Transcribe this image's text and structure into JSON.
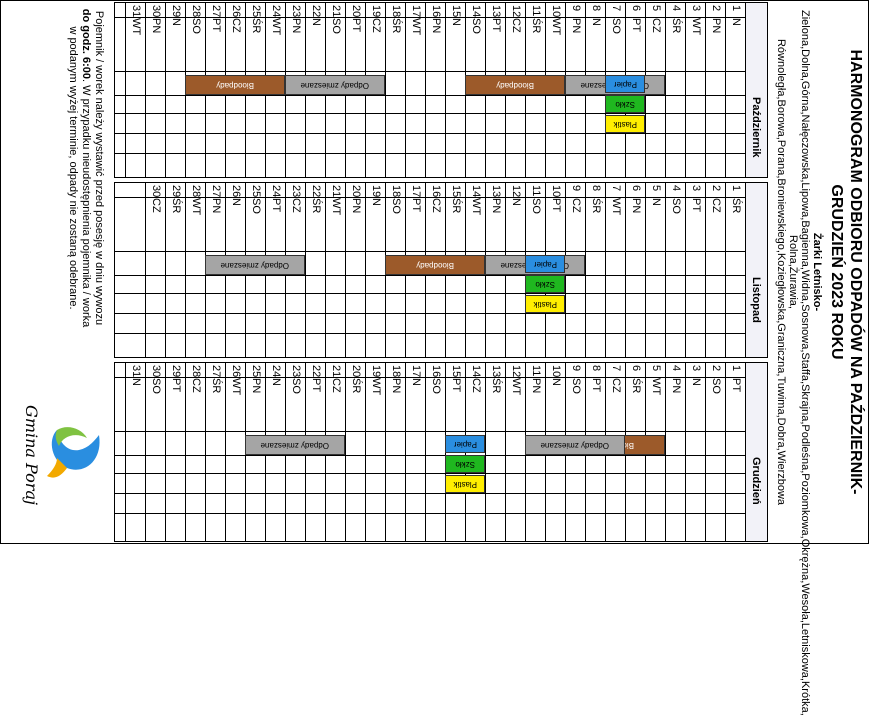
{
  "document": {
    "title_lines": [
      "HARMONOGRAM ODBIORU ODPADÓW NA PAŹDZIERNIK-",
      "GRUDZIEŃ 2023 ROKU"
    ],
    "area_name": "Żarki Letnisko-",
    "streets": "Zielona,Dolna,Górna,Nałęczowska,Lipowa,Bagienna,Widna,Sosnowa,Staffa,Skrajna,Podleśna,Poziomkowa,Okrężna,Wesoła,Letniskowa,Krótka, Rolna,Żurawia, Równoległa,Borowa,Porana,Broniewskiego,Koziegłowska,Graniczna,Tuwima,Dobra,Wierzbowa"
  },
  "months": [
    {
      "name": "Październik",
      "days": [
        [
          "1",
          "N"
        ],
        [
          "2",
          "PN"
        ],
        [
          "3",
          "WT"
        ],
        [
          "4",
          "ŚR"
        ],
        [
          "5",
          "CZ"
        ],
        [
          "6",
          "PT"
        ],
        [
          "7",
          "SO"
        ],
        [
          "8",
          "N"
        ],
        [
          "9",
          "PN"
        ],
        [
          "10",
          "WT"
        ],
        [
          "11",
          "ŚR"
        ],
        [
          "12",
          "CZ"
        ],
        [
          "13",
          "PT"
        ],
        [
          "14",
          "SO"
        ],
        [
          "15",
          "N"
        ],
        [
          "16",
          "PN"
        ],
        [
          "17",
          "WT"
        ],
        [
          "18",
          "ŚR"
        ],
        [
          "19",
          "CZ"
        ],
        [
          "20",
          "PT"
        ],
        [
          "21",
          "SO"
        ],
        [
          "22",
          "N"
        ],
        [
          "23",
          "PN"
        ],
        [
          "24",
          "WT"
        ],
        [
          "25",
          "ŚR"
        ],
        [
          "26",
          "CZ"
        ],
        [
          "27",
          "PT"
        ],
        [
          "28",
          "SO"
        ],
        [
          "29",
          "N"
        ],
        [
          "30",
          "PN"
        ],
        [
          "31",
          "WT"
        ]
      ]
    },
    {
      "name": "Listopad",
      "days": [
        [
          "1",
          "ŚR"
        ],
        [
          "2",
          "CZ"
        ],
        [
          "3",
          "PT"
        ],
        [
          "4",
          "SO"
        ],
        [
          "5",
          "N"
        ],
        [
          "6",
          "PN"
        ],
        [
          "7",
          "WT"
        ],
        [
          "8",
          "ŚR"
        ],
        [
          "9",
          "CZ"
        ],
        [
          "10",
          "PT"
        ],
        [
          "11",
          "SO"
        ],
        [
          "12",
          "N"
        ],
        [
          "13",
          "PN"
        ],
        [
          "14",
          "WT"
        ],
        [
          "15",
          "ŚR"
        ],
        [
          "16",
          "CZ"
        ],
        [
          "17",
          "PT"
        ],
        [
          "18",
          "SO"
        ],
        [
          "19",
          "N"
        ],
        [
          "20",
          "PN"
        ],
        [
          "21",
          "WT"
        ],
        [
          "22",
          "ŚR"
        ],
        [
          "23",
          "CZ"
        ],
        [
          "24",
          "PT"
        ],
        [
          "25",
          "SO"
        ],
        [
          "26",
          "N"
        ],
        [
          "27",
          "PN"
        ],
        [
          "28",
          "WT"
        ],
        [
          "29",
          "ŚR"
        ],
        [
          "30",
          "CZ"
        ]
      ]
    },
    {
      "name": "Grudzień",
      "days": [
        [
          "1",
          "PT"
        ],
        [
          "2",
          "SO"
        ],
        [
          "3",
          "N"
        ],
        [
          "4",
          "PN"
        ],
        [
          "5",
          "WT"
        ],
        [
          "6",
          "ŚR"
        ],
        [
          "7",
          "CZ"
        ],
        [
          "8",
          "PT"
        ],
        [
          "9",
          "SO"
        ],
        [
          "10",
          "N"
        ],
        [
          "11",
          "PN"
        ],
        [
          "12",
          "WT"
        ],
        [
          "13",
          "ŚR"
        ],
        [
          "14",
          "CZ"
        ],
        [
          "15",
          "PT"
        ],
        [
          "16",
          "SO"
        ],
        [
          "17",
          "N"
        ],
        [
          "18",
          "PN"
        ],
        [
          "19",
          "WT"
        ],
        [
          "20",
          "ŚR"
        ],
        [
          "21",
          "CZ"
        ],
        [
          "22",
          "PT"
        ],
        [
          "23",
          "SO"
        ],
        [
          "24",
          "N"
        ],
        [
          "25",
          "PN"
        ],
        [
          "26",
          "WT"
        ],
        [
          "27",
          "ŚR"
        ],
        [
          "28",
          "CZ"
        ],
        [
          "29",
          "PT"
        ],
        [
          "30",
          "SO"
        ],
        [
          "31",
          "N"
        ]
      ]
    }
  ],
  "waste_types": {
    "mixed": "Odpady zmieszane",
    "bio": "Bioodpady",
    "paper": "Papier",
    "glass": "Szkło",
    "plastic": "Plastik"
  },
  "colors": {
    "bio": "#9c5a2a",
    "mixed": "#a5a5a5",
    "paper": "#2a8ee0",
    "glass": "#1fb81f",
    "plastic": "#ffee00"
  },
  "schedule": [
    {
      "month": 0,
      "day": 5,
      "types": [
        "mixed"
      ]
    },
    {
      "month": 0,
      "day": 6,
      "types": [
        "paper",
        "glass",
        "plastic"
      ]
    },
    {
      "month": 0,
      "day": 10,
      "types": [
        "bio"
      ]
    },
    {
      "month": 0,
      "day": 19,
      "types": [
        "mixed"
      ]
    },
    {
      "month": 0,
      "day": 24,
      "types": [
        "bio"
      ]
    },
    {
      "month": 1,
      "day": 9,
      "types": [
        "mixed"
      ]
    },
    {
      "month": 1,
      "day": 10,
      "types": [
        "paper",
        "glass",
        "plastic"
      ]
    },
    {
      "month": 1,
      "day": 14,
      "types": [
        "bio"
      ]
    },
    {
      "month": 1,
      "day": 23,
      "types": [
        "mixed"
      ]
    },
    {
      "month": 2,
      "day": 5,
      "types": [
        "bio"
      ]
    },
    {
      "month": 2,
      "day": 7,
      "types": [
        "mixed"
      ]
    },
    {
      "month": 2,
      "day": 14,
      "types": [
        "paper",
        "glass",
        "plastic"
      ]
    },
    {
      "month": 2,
      "day": 21,
      "types": [
        "mixed"
      ]
    }
  ],
  "footer": {
    "note_1": "Pojemnik / worek należy wystawić przed posesję w dniu wywozu ",
    "note_bold": "do godz. 6:00",
    "note_2": ". W przypadku nieudostępnienia pojemnika / worka w podanym wyżej terminie, odpady nie zostaną odebrane.",
    "logo_text": "Gmina Poraj"
  }
}
